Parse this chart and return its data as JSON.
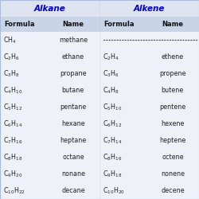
{
  "title_alkane": "Alkane",
  "title_alkene": "Alkene",
  "col_headers": [
    "Formula",
    "Name",
    "Formula",
    "Name"
  ],
  "header_bg": "#c8d4e8",
  "title_bg": "#dde4f0",
  "row_bg": "#eef2f8",
  "border_color": "#aabbdd",
  "title_color": "#0000cc",
  "header_color": "#111111",
  "data_color": "#222222",
  "alkane_formulas_display": [
    "$\\mathregular{CH_4}$",
    "$\\mathregular{C_2H_6}$",
    "$\\mathregular{C_3H_8}$",
    "$\\mathregular{C_4H_{10}}$",
    "$\\mathregular{C_5H_{12}}$",
    "$\\mathregular{C_6H_{14}}$",
    "$\\mathregular{C_7H_{16}}$",
    "$\\mathregular{C_8H_{18}}$",
    "$\\mathregular{C_9H_{20}}$",
    "$\\mathregular{C_{10}H_{22}}$"
  ],
  "alkane_names": [
    "methane",
    "ethane",
    "propane",
    "butane",
    "pentane",
    "hexane",
    "heptane",
    "octane",
    "nonane",
    "decane"
  ],
  "alkene_formulas_display": [
    "",
    "$\\mathregular{C_2H_4}$",
    "$\\mathregular{C_3H_6}$",
    "$\\mathregular{C_4H_8}$",
    "$\\mathregular{C_5H_{10}}$",
    "$\\mathregular{C_6H_{12}}$",
    "$\\mathregular{C_7H_{14}}$",
    "$\\mathregular{C_8H_{16}}$",
    "$\\mathregular{C_9H_{18}}$",
    "$\\mathregular{C_{10}H_{20}}$"
  ],
  "alkene_names": [
    "",
    "ethene",
    "propene",
    "butene",
    "pentene",
    "hexene",
    "heptene",
    "octene",
    "nonene",
    "decene"
  ],
  "dotted_row": 0,
  "fig_width": 2.5,
  "fig_height": 2.5,
  "dpi": 100
}
